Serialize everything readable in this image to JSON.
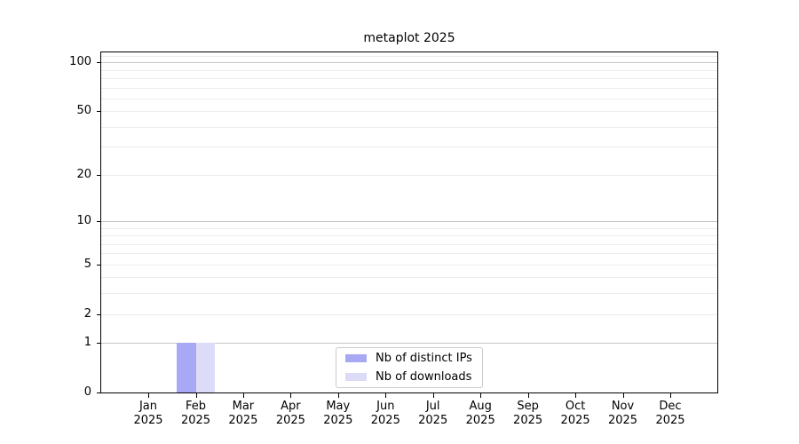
{
  "chart_data": {
    "type": "bar",
    "title": "metaplot 2025",
    "xlabel": "",
    "ylabel": "",
    "categories": [
      "Jan 2025",
      "Feb 2025",
      "Mar 2025",
      "Apr 2025",
      "May 2025",
      "Jun 2025",
      "Jul 2025",
      "Aug 2025",
      "Sep 2025",
      "Oct 2025",
      "Nov 2025",
      "Dec 2025"
    ],
    "series": [
      {
        "name": "Nb of distinct IPs",
        "color": "#a8a8f4",
        "values": [
          0,
          1,
          0,
          0,
          0,
          0,
          0,
          0,
          0,
          0,
          0,
          0
        ]
      },
      {
        "name": "Nb of downloads",
        "color": "#dcdcf8",
        "values": [
          0,
          1,
          0,
          0,
          0,
          0,
          0,
          0,
          0,
          0,
          0,
          0
        ]
      }
    ],
    "yscale": "log1p",
    "ylim": [
      0,
      115
    ],
    "yticks": [
      0,
      1,
      2,
      5,
      10,
      20,
      50,
      100
    ],
    "grid": {
      "major": [
        1,
        10,
        100
      ],
      "minor": [
        2,
        3,
        4,
        5,
        6,
        7,
        8,
        9,
        20,
        30,
        40,
        50,
        60,
        70,
        80,
        90,
        110
      ]
    },
    "legend_position": "lower center",
    "legend": [
      "Nb of distinct IPs",
      "Nb of downloads"
    ]
  },
  "colors": {
    "background": "#ffffff",
    "spine": "#000000",
    "grid_major": "#c6c6c6",
    "grid_minor": "#ededed",
    "tick_text": "#000000"
  }
}
